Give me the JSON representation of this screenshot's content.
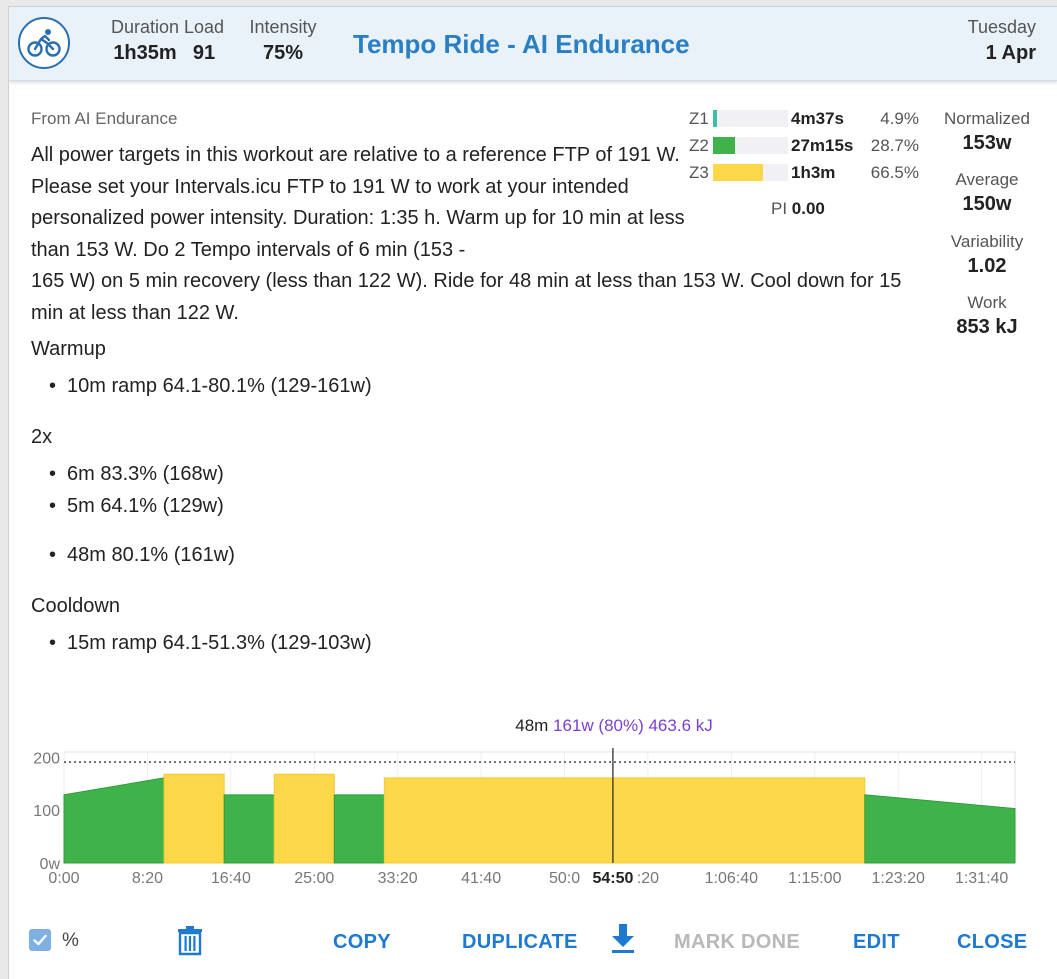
{
  "header": {
    "stats": [
      {
        "label": "Duration",
        "value": "1h35m"
      },
      {
        "label": "Load",
        "value": "91"
      },
      {
        "label": "Intensity",
        "value": "75%"
      }
    ],
    "title": "Tempo Ride - AI Endurance",
    "day_of_week": "Tuesday",
    "date": "1 Apr",
    "icon": "bike-icon"
  },
  "source": "From AI Endurance",
  "description_line1": "All power targets in this workout are relative to a reference FTP of 191 W. Please set your Intervals.icu FTP to 191 W to work at your intended personalized power intensity. Duration: 1:35 h. Warm up for 10 min at less than 153 W. Do 2 Tempo intervals of 6 min (153 -",
  "description_line2": "165 W) on 5 min recovery (less than 122 W). Ride for 48 min at less than 153 W. Cool down for 15 min at less than 122 W.",
  "steps": {
    "warmup_label": "Warmup",
    "warmup": "10m ramp 64.1-80.1% (129-161w)",
    "repeat_label": "2x",
    "repeat_1": "6m 83.3% (168w)",
    "repeat_2": "5m 64.1% (129w)",
    "main": "48m 80.1% (161w)",
    "cooldown_label": "Cooldown",
    "cooldown": "15m ramp 64.1-51.3% (129-103w)"
  },
  "zones": [
    {
      "label": "Z1",
      "time": "4m37s",
      "percent": "4.9%",
      "fraction": 0.049,
      "color": "#3cbfa5"
    },
    {
      "label": "Z2",
      "time": "27m15s",
      "percent": "28.7%",
      "fraction": 0.287,
      "color": "#3fb34a"
    },
    {
      "label": "Z3",
      "time": "1h3m",
      "percent": "66.5%",
      "fraction": 0.665,
      "color": "#fcd748"
    }
  ],
  "pi_label": "PI",
  "pi_value": "0.00",
  "right_stats": [
    {
      "label": "Normalized",
      "value": "153w"
    },
    {
      "label": "Average",
      "value": "150w"
    },
    {
      "label": "Variability",
      "value": "1.02"
    },
    {
      "label": "Work",
      "value": "853 kJ"
    }
  ],
  "chart_info": {
    "duration": "48m",
    "detail": "161w (80%) 463.6 kJ"
  },
  "chart_data": {
    "type": "area",
    "y_ticks": [
      "200",
      "100",
      "0w"
    ],
    "ylim": [
      0,
      210
    ],
    "x_ticks": [
      "0:00",
      "8:20",
      "16:40",
      "25:00",
      "33:20",
      "41:40",
      "50:0",
      "54:50",
      ":20",
      "1:06:40",
      "1:15:00",
      "1:23:20",
      "1:31:40"
    ],
    "x_tick_minutes": [
      0,
      8.333,
      16.667,
      25,
      33.333,
      41.667,
      50,
      54.833,
      58.333,
      66.667,
      75,
      83.333,
      91.667
    ],
    "xlim_minutes": [
      0,
      95
    ],
    "cursor_minutes": 54.833,
    "reference_line_watts": 191,
    "segments": [
      {
        "start": 0,
        "end": 10,
        "from": 129,
        "to": 161,
        "zone": "Z2"
      },
      {
        "start": 10,
        "end": 16,
        "from": 168,
        "to": 168,
        "zone": "Z3"
      },
      {
        "start": 16,
        "end": 21,
        "from": 129,
        "to": 129,
        "zone": "Z2"
      },
      {
        "start": 21,
        "end": 27,
        "from": 168,
        "to": 168,
        "zone": "Z3"
      },
      {
        "start": 27,
        "end": 32,
        "from": 129,
        "to": 129,
        "zone": "Z2"
      },
      {
        "start": 32,
        "end": 80,
        "from": 161,
        "to": 161,
        "zone": "Z3"
      },
      {
        "start": 80,
        "end": 95,
        "from": 129,
        "to": 103,
        "zone": "Z2"
      }
    ],
    "colors": {
      "Z2": "#3fb34a",
      "Z3": "#fcd748"
    }
  },
  "footer": {
    "percent_label": "%",
    "copy": "COPY",
    "duplicate": "DUPLICATE",
    "mark_done": "MARK DONE",
    "edit": "EDIT",
    "close": "CLOSE"
  }
}
